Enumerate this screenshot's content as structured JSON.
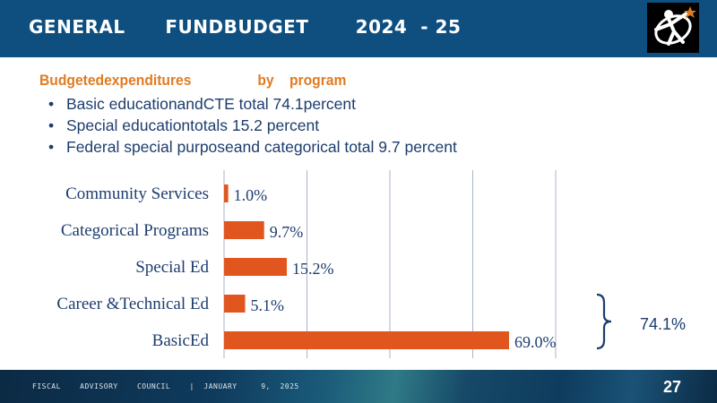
{
  "header": {
    "title": "GENERAL      FUNDBUDGET       2024  - 25"
  },
  "subtitle": "Budgetedexpenditures                 by    program",
  "bullets": [
    "Basic educationandCTE  total 74.1percent",
    "Special educationtotals  15.2 percent",
    "Federal special purposeand  categorical total 9.7 percent"
  ],
  "chart_data": {
    "type": "bar",
    "orientation": "horizontal",
    "categories": [
      "Community Services",
      "Categorical Programs",
      "Special Ed",
      "Career &Technical Ed",
      "BasicEd"
    ],
    "values": [
      1.0,
      9.7,
      15.2,
      5.1,
      69.0
    ],
    "data_labels": [
      "1.0%",
      "9.7%",
      "15.2%",
      "5.1%",
      "69.0%"
    ],
    "xlim": [
      0,
      70
    ],
    "grid": true,
    "bar_color": "#e0561e"
  },
  "bracket_label": "74.1%",
  "footer": {
    "text": "FISCAL    ADVISORY    COUNCIL    |  JANUARY     9,  2025",
    "page": "27"
  },
  "colors": {
    "header": "#0e4f80",
    "accent": "#e07b22",
    "text": "#1d3d6e",
    "bar": "#e0561e"
  },
  "icons": {
    "logo": "person-with-star-logo-icon"
  }
}
